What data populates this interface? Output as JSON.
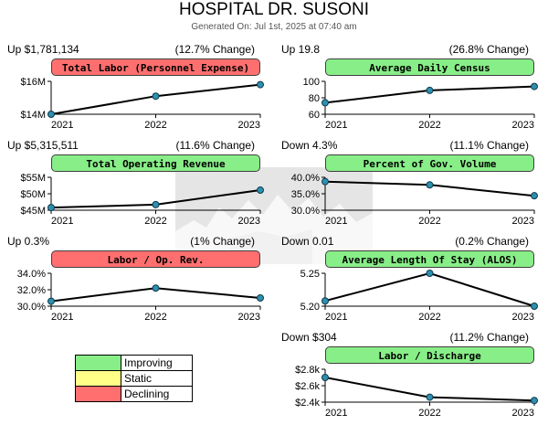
{
  "header": {
    "title": "HOSPITAL DR. SUSONI",
    "generated": "Generated On: Jul 1st, 2025 at 07:40 am"
  },
  "colors": {
    "improving": "#88ee88",
    "static": "#ffff88",
    "declining": "#ff6f6f",
    "marker": "#2e8faf"
  },
  "legend": [
    {
      "label": "Improving",
      "status": "improving"
    },
    {
      "label": "Static",
      "status": "static"
    },
    {
      "label": "Declining",
      "status": "declining"
    }
  ],
  "chart_data": [
    {
      "type": "line",
      "title": "Total Labor (Personnel Expense)",
      "status": "declining",
      "change_left": "Up $1,781,134",
      "change_right": "(12.7% Change)",
      "x": [
        "2021",
        "2022",
        "2023"
      ],
      "values": [
        14.0,
        15.1,
        15.8
      ],
      "ylim": [
        14,
        16
      ],
      "yticks": [
        {
          "value": 16,
          "label": "$16M"
        },
        {
          "value": 14,
          "label": "$14M"
        }
      ]
    },
    {
      "type": "line",
      "title": "Average Daily Census",
      "status": "improving",
      "change_left": "Up 19.8",
      "change_right": "(26.8% Change)",
      "x": [
        "2021",
        "2022",
        "2023"
      ],
      "values": [
        74,
        89,
        93.8
      ],
      "ylim": [
        60,
        100
      ],
      "yticks": [
        {
          "value": 100,
          "label": "100"
        },
        {
          "value": 80,
          "label": "80"
        },
        {
          "value": 60,
          "label": "60"
        }
      ]
    },
    {
      "type": "line",
      "title": "Total Operating Revenue",
      "status": "improving",
      "change_left": "Up $5,315,511",
      "change_right": "(11.6% Change)",
      "x": [
        "2021",
        "2022",
        "2023"
      ],
      "values": [
        45.8,
        46.7,
        51.1
      ],
      "ylim": [
        45,
        55
      ],
      "yticks": [
        {
          "value": 55,
          "label": "$55M"
        },
        {
          "value": 50,
          "label": "$50M"
        },
        {
          "value": 45,
          "label": "$45M"
        }
      ]
    },
    {
      "type": "line",
      "title": "Percent of Gov. Volume",
      "status": "improving",
      "change_left": "Down 4.3%",
      "change_right": "(11.1% Change)",
      "x": [
        "2021",
        "2022",
        "2023"
      ],
      "values": [
        38.7,
        37.7,
        34.4
      ],
      "ylim": [
        30,
        40
      ],
      "yticks": [
        {
          "value": 40,
          "label": "40.0%"
        },
        {
          "value": 35,
          "label": "35.0%"
        },
        {
          "value": 30,
          "label": "30.0%"
        }
      ]
    },
    {
      "type": "line",
      "title": "Labor / Op. Rev.",
      "status": "declining",
      "change_left": "Up 0.3%",
      "change_right": "(1% Change)",
      "x": [
        "2021",
        "2022",
        "2023"
      ],
      "values": [
        30.6,
        32.2,
        31.0
      ],
      "ylim": [
        30,
        34
      ],
      "yticks": [
        {
          "value": 34,
          "label": "34.0%"
        },
        {
          "value": 32,
          "label": "32.0%"
        },
        {
          "value": 30,
          "label": "30.0%"
        }
      ]
    },
    {
      "type": "line",
      "title": "Average Length Of Stay (ALOS)",
      "status": "improving",
      "change_left": "Down 0.01",
      "change_right": "(0.2% Change)",
      "x": [
        "2021",
        "2022",
        "2023"
      ],
      "values": [
        5.208,
        5.25,
        5.2
      ],
      "ylim": [
        5.2,
        5.25
      ],
      "yticks": [
        {
          "value": 5.25,
          "label": "5.25"
        },
        {
          "value": 5.2,
          "label": "5.20"
        }
      ]
    },
    {
      "type": "line",
      "title": "Labor / Discharge",
      "status": "improving",
      "change_left": "Down $304",
      "change_right": "(11.2% Change)",
      "x": [
        "2021",
        "2022",
        "2023"
      ],
      "values": [
        2.7,
        2.46,
        2.42
      ],
      "ylim": [
        2.4,
        2.8
      ],
      "yticks": [
        {
          "value": 2.8,
          "label": "$2.8k"
        },
        {
          "value": 2.6,
          "label": "$2.6k"
        },
        {
          "value": 2.4,
          "label": "$2.4k"
        }
      ]
    }
  ]
}
